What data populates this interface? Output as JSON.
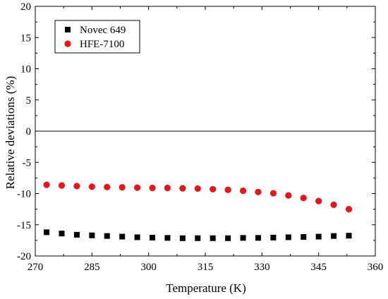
{
  "chart_data": {
    "type": "scatter",
    "title": "",
    "xlabel": "Temperature (K)",
    "ylabel": "Relative deviations (%)",
    "xlim": [
      270,
      360
    ],
    "ylim": [
      -20,
      20
    ],
    "x_ticks": [
      270,
      285,
      300,
      315,
      330,
      345,
      360
    ],
    "y_ticks": [
      20,
      15,
      10,
      5,
      0,
      -5,
      -10,
      -15,
      -20
    ],
    "x_tick_labels": [
      "270",
      "285",
      "300",
      "315",
      "330",
      "345",
      "360"
    ],
    "y_tick_labels": [
      "20",
      "15",
      "10",
      "5",
      "0",
      "-5",
      "-10",
      "-15",
      "-20"
    ],
    "reference_line_y": 0,
    "grid": false,
    "legend_position": "top-left",
    "series": [
      {
        "name": "Novec 649",
        "marker": "square",
        "color": "#000000",
        "x": [
          273,
          277,
          281,
          285,
          289,
          293,
          297,
          301,
          305,
          309,
          313,
          317,
          321,
          325,
          329,
          333,
          337,
          341,
          345,
          349,
          353
        ],
        "y": [
          -16.2,
          -16.4,
          -16.6,
          -16.7,
          -16.8,
          -16.9,
          -17.0,
          -17.05,
          -17.1,
          -17.15,
          -17.15,
          -17.15,
          -17.15,
          -17.1,
          -17.1,
          -17.05,
          -17.0,
          -16.95,
          -16.9,
          -16.8,
          -16.75
        ]
      },
      {
        "name": "HFE-7100",
        "marker": "circle",
        "color": "#e8141c",
        "x": [
          273,
          277,
          281,
          285,
          289,
          293,
          297,
          301,
          305,
          309,
          313,
          317,
          321,
          325,
          329,
          333,
          337,
          341,
          345,
          349,
          353
        ],
        "y": [
          -8.6,
          -8.7,
          -8.8,
          -8.9,
          -8.95,
          -9.0,
          -9.05,
          -9.1,
          -9.1,
          -9.15,
          -9.2,
          -9.3,
          -9.4,
          -9.55,
          -9.75,
          -9.95,
          -10.3,
          -10.7,
          -11.2,
          -11.8,
          -12.5
        ]
      }
    ]
  }
}
